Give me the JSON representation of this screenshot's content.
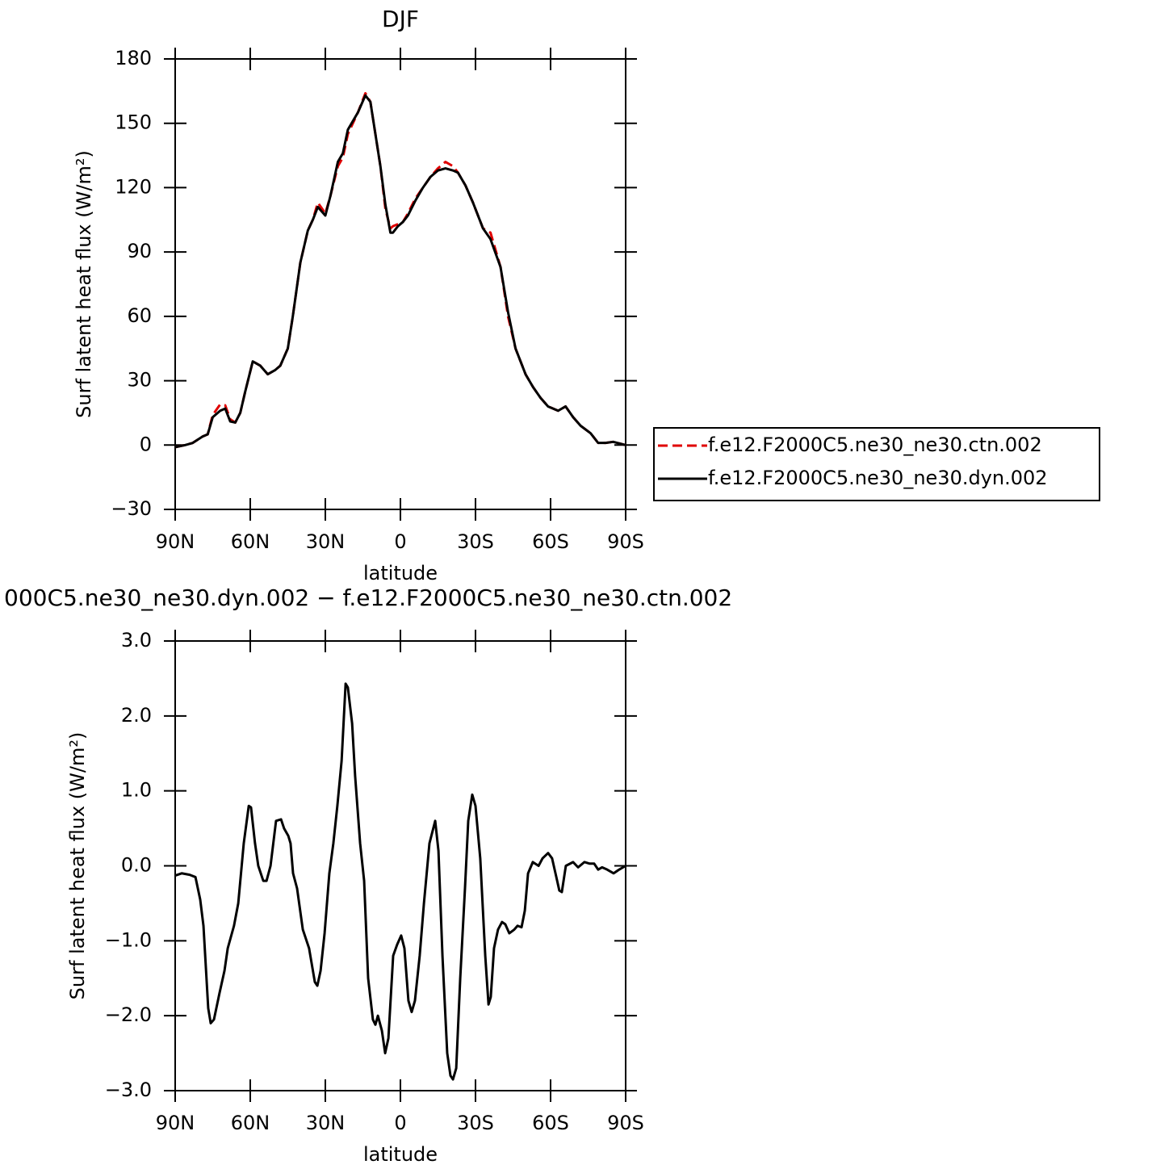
{
  "chart_data": [
    {
      "type": "line",
      "title": "DJF",
      "xlabel": "latitude",
      "ylabel": "Surf latent heat flux (W/m²)",
      "x": [
        90,
        86,
        83,
        79,
        77,
        75,
        72,
        70,
        68,
        66,
        64,
        62,
        59,
        56,
        53,
        50,
        48,
        45,
        43,
        40,
        37,
        35,
        33,
        30,
        28,
        25,
        23,
        21,
        17,
        14,
        12,
        10,
        8,
        6,
        4,
        3,
        1,
        -1,
        -3,
        -6,
        -9,
        -12,
        -15,
        -18,
        -21,
        -23,
        -26,
        -29,
        -33,
        -36,
        -40,
        -43,
        -46,
        -50,
        -53,
        -56,
        -59,
        -63,
        -66,
        -69,
        -72,
        -76,
        -79,
        -82,
        -85,
        -90
      ],
      "series": [
        {
          "name": "f.e12.F2000C5.ne30_ne30.ctn.002",
          "color": "#e00000",
          "dashed": true,
          "values": [
            -1,
            0,
            1,
            4,
            5,
            14,
            19,
            18.5,
            12,
            10.5,
            15,
            25,
            39,
            37,
            33,
            35,
            37,
            45,
            60,
            85,
            100,
            105,
            113,
            108,
            116,
            130,
            134,
            145,
            155,
            164,
            160,
            145,
            130,
            110,
            101,
            102,
            103,
            104,
            108,
            115,
            120,
            125,
            129,
            132,
            130,
            127,
            121,
            113,
            101,
            99,
            83,
            60,
            45,
            33,
            27,
            22,
            18,
            16,
            18,
            13,
            9,
            5.5,
            1,
            1,
            1.5,
            0
          ]
        },
        {
          "name": "f.e12.F2000C5.ne30_ne30.dyn.002",
          "color": "#000000",
          "dashed": false,
          "values": [
            -1,
            0,
            1,
            4,
            5,
            13,
            16,
            17,
            11,
            10.5,
            15,
            25,
            39,
            37,
            33,
            35,
            37,
            45,
            60,
            85,
            100,
            105,
            111,
            107,
            116,
            132,
            136,
            147,
            155,
            163,
            160,
            145,
            130,
            112,
            99,
            99,
            102,
            104,
            107,
            114,
            120,
            125,
            128,
            129,
            128,
            127,
            121,
            113,
            101,
            96,
            83,
            62,
            45,
            33,
            27,
            22,
            18,
            16,
            18,
            13,
            9,
            5.5,
            1,
            1,
            1.5,
            0
          ]
        }
      ],
      "xlim": [
        90,
        -90
      ],
      "xticks": [
        {
          "value": 90,
          "label": "90N"
        },
        {
          "value": 60,
          "label": "60N"
        },
        {
          "value": 30,
          "label": "30N"
        },
        0,
        {
          "value": -30,
          "label": "30S"
        },
        {
          "value": -60,
          "label": "60S"
        },
        {
          "value": -90,
          "label": "90S"
        }
      ],
      "ylim": [
        -30,
        180
      ],
      "yticks": [
        {
          "value": -30,
          "label": "−30"
        },
        0,
        30,
        60,
        90,
        120,
        150,
        180
      ],
      "legend": "right"
    },
    {
      "type": "line",
      "title": "000C5.ne30_ne30.dyn.002 − f.e12.F2000C5.ne30_ne30.ctn.002",
      "xlabel": "latitude",
      "ylabel": "Surf latent heat flux (W/m²)",
      "x": [
        90,
        87.4,
        84.2,
        81.9,
        80,
        78.7,
        76.8,
        75.8,
        74.5,
        72.3,
        70.3,
        69,
        66.5,
        64.8,
        62.6,
        60.6,
        59.7,
        58.1,
        56.8,
        54.8,
        53.5,
        51.9,
        49.7,
        47.7,
        46.5,
        44.8,
        43.9,
        42.9,
        41.3,
        39,
        36.5,
        34.2,
        33.2,
        31.9,
        30.3,
        28.4,
        26.8,
        25.2,
        23.5,
        21.9,
        21,
        19.3,
        18.1,
        16.1,
        14.5,
        12.9,
        11,
        10,
        9,
        7.4,
        6.1,
        4.8,
        2.9,
        1.3,
        -0.3,
        -1.6,
        -3.2,
        -4.5,
        -5.8,
        -7.7,
        -9.4,
        -11.6,
        -13.9,
        -15.2,
        -16.8,
        -18.7,
        -20,
        -21,
        -22.3,
        -23.9,
        -25.8,
        -27.1,
        -28.7,
        -30,
        -31.9,
        -33.9,
        -35.2,
        -36.1,
        -37.4,
        -39,
        -40.6,
        -41.9,
        -43.5,
        -45.5,
        -46.8,
        -48.4,
        -49.7,
        -51,
        -52.9,
        -55.2,
        -56.8,
        -59,
        -60.6,
        -62.3,
        -63.5,
        -64.5,
        -66.1,
        -69,
        -71,
        -73.5,
        -75.5,
        -77.4,
        -79,
        -80.6,
        -82.6,
        -85.2,
        -87.4,
        -90
      ],
      "series": [
        {
          "color": "#000000",
          "dashed": false,
          "values": [
            -0.13,
            -0.1,
            -0.12,
            -0.15,
            -0.45,
            -0.8,
            -1.9,
            -2.1,
            -2.05,
            -1.7,
            -1.4,
            -1.1,
            -0.8,
            -0.5,
            0.3,
            0.8,
            0.78,
            0.3,
            0,
            -0.2,
            -0.2,
            0,
            0.6,
            0.62,
            0.5,
            0.4,
            0.3,
            -0.1,
            -0.3,
            -0.85,
            -1.1,
            -1.55,
            -1.6,
            -1.4,
            -0.9,
            -0.1,
            0.3,
            0.8,
            1.4,
            2.43,
            2.38,
            1.9,
            1.2,
            0.3,
            -0.2,
            -1.5,
            -2.05,
            -2.12,
            -2.0,
            -2.2,
            -2.5,
            -2.3,
            -1.2,
            -1.05,
            -0.93,
            -1.1,
            -1.8,
            -1.95,
            -1.8,
            -1.2,
            -0.5,
            0.3,
            0.6,
            0.2,
            -1.2,
            -2.5,
            -2.8,
            -2.85,
            -2.7,
            -1.5,
            -0.3,
            0.6,
            0.95,
            0.8,
            0.1,
            -1.2,
            -1.85,
            -1.75,
            -1.1,
            -0.85,
            -0.75,
            -0.78,
            -0.9,
            -0.85,
            -0.8,
            -0.82,
            -0.6,
            -0.1,
            0.05,
            0,
            0.1,
            0.17,
            0.1,
            -0.15,
            -0.33,
            -0.35,
            0,
            0.05,
            -0.02,
            0.05,
            0.03,
            0.03,
            -0.05,
            -0.02,
            -0.05,
            -0.1,
            -0.05,
            0
          ]
        }
      ],
      "xlim": [
        90,
        -90
      ],
      "xticks": [
        {
          "value": 90,
          "label": "90N"
        },
        {
          "value": 60,
          "label": "60N"
        },
        {
          "value": 30,
          "label": "30N"
        },
        0,
        {
          "value": -30,
          "label": "30S"
        },
        {
          "value": -60,
          "label": "60S"
        },
        {
          "value": -90,
          "label": "90S"
        }
      ],
      "ylim": [
        -3,
        3
      ],
      "yticks": [
        {
          "value": -3,
          "label": "−3.0"
        },
        {
          "value": -2,
          "label": "−2.0"
        },
        {
          "value": -1,
          "label": "−1.0"
        },
        {
          "value": 0,
          "label": "0.0"
        },
        {
          "value": 1,
          "label": "1.0"
        },
        {
          "value": 2,
          "label": "2.0"
        },
        {
          "value": 3,
          "label": "3.0"
        }
      ]
    }
  ]
}
